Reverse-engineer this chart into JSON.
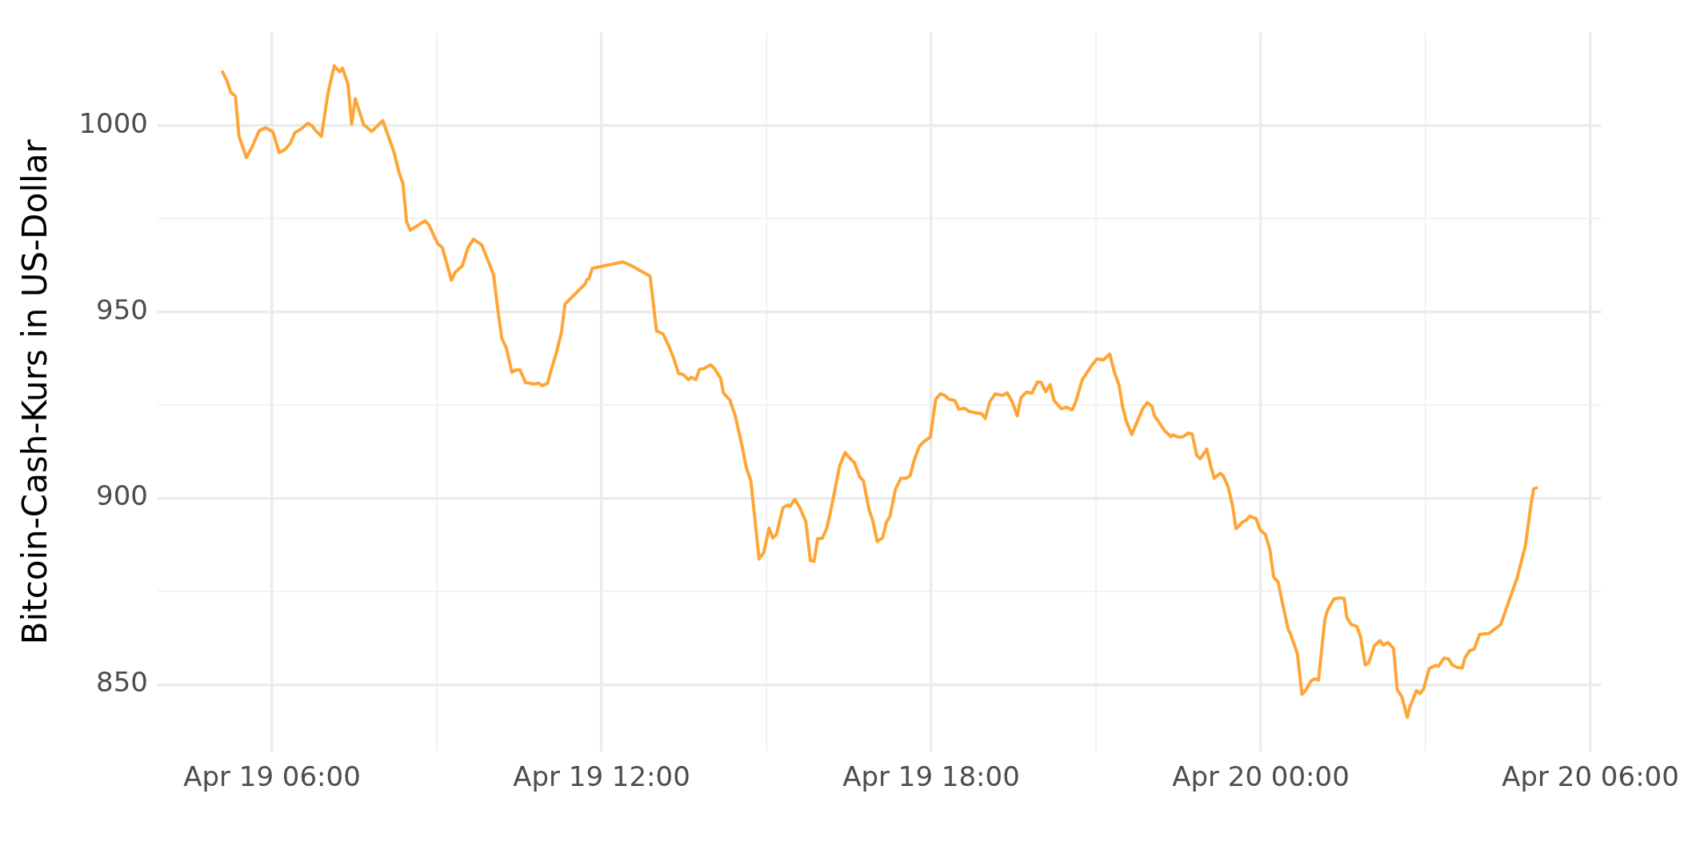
{
  "chart_data": {
    "type": "line",
    "ylabel": "Bitcoin-Cash-Kurs in US-Dollar",
    "x": [
      "--04-19T05:06",
      "--04-19T05:11",
      "--04-19T05:15",
      "--04-19T05:20",
      "--04-19T05:24",
      "--04-19T05:32",
      "--04-19T05:38",
      "--04-19T05:46",
      "--04-19T05:53",
      "--04-19T06:01",
      "--04-19T06:08",
      "--04-19T06:14",
      "--04-19T06:20",
      "--04-19T06:25",
      "--04-19T06:32",
      "--04-19T06:39",
      "--04-19T06:44",
      "--04-19T06:47",
      "--04-19T06:54",
      "--04-19T07:01",
      "--04-19T07:08",
      "--04-19T07:14",
      "--04-19T07:17",
      "--04-19T07:23",
      "--04-19T07:27",
      "--04-19T07:31",
      "--04-19T07:40",
      "--04-19T07:49",
      "--04-19T08:01",
      "--04-19T08:13",
      "--04-19T08:19",
      "--04-19T08:23",
      "--04-19T08:27",
      "--04-19T08:31",
      "--04-19T08:47",
      "--04-19T08:51",
      "--04-19T09:01",
      "--04-19T09:06",
      "--04-19T09:16",
      "--04-19T09:20",
      "--04-19T09:28",
      "--04-19T09:34",
      "--04-19T09:40",
      "--04-19T09:49",
      "--04-19T10:02",
      "--04-19T10:06",
      "--04-19T10:11",
      "--04-19T10:16",
      "--04-19T10:22",
      "--04-19T10:26",
      "--04-19T10:31",
      "--04-19T10:37",
      "--04-19T10:41",
      "--04-19T10:46",
      "--04-19T10:51",
      "--04-19T10:55",
      "--04-19T11:01",
      "--04-19T11:05",
      "--04-19T11:10",
      "--04-19T11:16",
      "--04-19T11:20",
      "--04-19T11:42",
      "--04-19T11:44",
      "--04-19T11:46",
      "--04-19T11:50",
      "--04-19T12:23",
      "--04-19T12:31",
      "--04-19T12:53",
      "--04-19T13:00",
      "--04-19T13:07",
      "--04-19T13:13",
      "--04-19T13:19",
      "--04-19T13:24",
      "--04-19T13:29",
      "--04-19T13:35",
      "--04-19T13:38",
      "--04-19T13:43",
      "--04-19T13:47",
      "--04-19T13:52",
      "--04-19T13:59",
      "--04-19T14:03",
      "--04-19T14:10",
      "--04-19T14:13",
      "--04-19T14:20",
      "--04-19T14:26",
      "--04-19T14:33",
      "--04-19T14:38",
      "--04-19T14:43",
      "--04-19T14:52",
      "--04-19T14:57",
      "--04-19T15:03",
      "--04-19T15:07",
      "--04-19T15:11",
      "--04-19T15:18",
      "--04-19T15:23",
      "--04-19T15:26",
      "--04-19T15:31",
      "--04-19T15:36",
      "--04-19T15:43",
      "--04-19T15:48",
      "--04-19T15:52",
      "--04-19T15:56",
      "--04-19T16:01",
      "--04-19T16:06",
      "--04-19T16:11",
      "--04-19T16:20",
      "--04-19T16:26",
      "--04-19T16:30",
      "--04-19T16:36",
      "--04-19T16:42",
      "--04-19T16:46",
      "--04-19T16:52",
      "--04-19T16:56",
      "--04-19T17:01",
      "--04-19T17:07",
      "--04-19T17:11",
      "--04-19T17:15",
      "--04-19T17:21",
      "--04-19T17:27",
      "--04-19T17:32",
      "--04-19T17:37",
      "--04-19T17:41",
      "--04-19T17:47",
      "--04-19T17:52",
      "--04-19T17:59",
      "--04-19T18:05",
      "--04-19T18:10",
      "--04-19T18:15",
      "--04-19T18:19",
      "--04-19T18:26",
      "--04-19T18:30",
      "--04-19T18:37",
      "--04-19T18:41",
      "--04-19T18:47",
      "--04-19T18:55",
      "--04-19T18:59",
      "--04-19T19:04",
      "--04-19T19:10",
      "--04-19T19:18",
      "--04-19T19:23",
      "--04-19T19:29",
      "--04-19T19:34",
      "--04-19T19:38",
      "--04-19T19:44",
      "--04-19T19:50",
      "--04-19T19:56",
      "--04-19T20:00",
      "--04-19T20:05",
      "--04-19T20:10",
      "--04-19T20:14",
      "--04-19T20:22",
      "--04-19T20:28",
      "--04-19T20:34",
      "--04-19T20:38",
      "--04-19T20:45",
      "--04-19T20:52",
      "--04-19T20:55",
      "--04-19T21:01",
      "--04-19T21:08",
      "--04-19T21:15",
      "--04-19T21:20",
      "--04-19T21:25",
      "--04-19T21:29",
      "--04-19T21:33",
      "--04-19T21:39",
      "--04-19T21:44",
      "--04-19T21:51",
      "--04-19T21:56",
      "--04-19T22:01",
      "--04-19T22:04",
      "--04-19T22:08",
      "--04-19T22:15",
      "--04-19T22:22",
      "--04-19T22:24",
      "--04-19T22:30",
      "--04-19T22:35",
      "--04-19T22:41",
      "--04-19T22:45",
      "--04-19T22:50",
      "--04-19T22:54",
      "--04-19T23:01",
      "--04-19T23:05",
      "--04-19T23:09",
      "--04-19T23:16",
      "--04-19T23:19",
      "--04-19T23:24",
      "--04-19T23:29",
      "--04-19T23:33",
      "--04-19T23:40",
      "--04-19T23:44",
      "--04-19T23:48",
      "--04-19T23:55",
      "--04-19T23:59",
      "--04-20T00:05",
      "--04-20T00:10",
      "--04-20T00:14",
      "--04-20T00:19",
      "--04-20T00:23",
      "--04-20T00:30",
      "--04-20T00:32",
      "--04-20T00:40",
      "--04-20T00:45",
      "--04-20T00:49",
      "--04-20T00:55",
      "--04-20T00:59",
      "--04-20T01:03",
      "--04-20T01:10",
      "--04-20T01:13",
      "--04-20T01:20",
      "--04-20T01:25",
      "--04-20T01:31",
      "--04-20T01:34",
      "--04-20T01:39",
      "--04-20T01:45",
      "--04-20T01:49",
      "--04-20T01:54",
      "--04-20T01:58",
      "--04-20T02:04",
      "--04-20T02:10",
      "--04-20T02:14",
      "--04-20T02:19",
      "--04-20T02:25",
      "--04-20T02:29",
      "--04-20T02:34",
      "--04-20T02:40",
      "--04-20T02:43",
      "--04-20T02:50",
      "--04-20T02:54",
      "--04-20T02:58",
      "--04-20T03:04",
      "--04-20T03:11",
      "--04-20T03:14",
      "--04-20T03:20",
      "--04-20T03:25",
      "--04-20T03:29",
      "--04-20T03:35",
      "--04-20T03:40",
      "--04-20T03:43",
      "--04-20T03:48",
      "--04-20T03:53",
      "--04-20T03:59",
      "--04-20T04:09",
      "--04-20T04:22",
      "--04-20T04:40",
      "--04-20T04:49",
      "--04-20T04:55",
      "--04-20T04:58",
      "--04-20T05:01"
    ],
    "series": [
      {
        "color": "#ffa536",
        "values": [
          1014.4,
          1011.9,
          1008.9,
          1007.9,
          997.1,
          991.4,
          994.1,
          998.6,
          999.4,
          998.3,
          992.7,
          993.5,
          995.2,
          998.1,
          999.1,
          1000.6,
          999.9,
          998.8,
          997.1,
          1008.5,
          1016.0,
          1014.4,
          1015.4,
          1011.1,
          1000.4,
          1007.2,
          1000.3,
          998.4,
          1001.3,
          993.1,
          987.2,
          984.5,
          974.2,
          971.9,
          974.4,
          973.5,
          968.3,
          967.3,
          958.5,
          960.6,
          962.4,
          967.2,
          969.5,
          968.0,
          960.0,
          951.8,
          942.9,
          940.3,
          933.8,
          934.4,
          934.4,
          931.0,
          930.9,
          930.6,
          930.9,
          930.2,
          930.8,
          934.5,
          938.5,
          944.3,
          952.1,
          957.5,
          958.7,
          958.8,
          961.7,
          963.4,
          962.6,
          959.6,
          944.9,
          944.1,
          941.1,
          937.4,
          933.5,
          933.2,
          931.8,
          932.5,
          931.8,
          934.6,
          934.8,
          935.8,
          934.9,
          932.2,
          928.3,
          926.4,
          922.1,
          914.5,
          908.3,
          904.7,
          883.7,
          885.4,
          892.0,
          889.3,
          890.3,
          897.4,
          898.2,
          897.9,
          899.7,
          897.7,
          893.8,
          883.3,
          883.1,
          889.2,
          889.2,
          892.0,
          897.5,
          908.7,
          912.3,
          911.0,
          909.6,
          905.7,
          904.7,
          897.1,
          894.2,
          888.4,
          889.4,
          893.5,
          895.2,
          902.5,
          905.4,
          905.3,
          906.0,
          909.9,
          913.9,
          915.2,
          916.4,
          926.6,
          928.0,
          927.6,
          926.6,
          926.2,
          923.9,
          924.1,
          923.3,
          923.0,
          922.7,
          921.4,
          925.9,
          928.0,
          927.6,
          928.3,
          925.6,
          922.1,
          927.0,
          928.5,
          928.2,
          931.2,
          931.1,
          928.6,
          930.5,
          926.3,
          924.0,
          924.4,
          923.7,
          926.0,
          931.8,
          934.4,
          935.5,
          937.4,
          937.1,
          938.7,
          933.9,
          930.5,
          924.6,
          920.8,
          917.1,
          920.0,
          924.0,
          925.7,
          924.7,
          922.0,
          920.7,
          918.1,
          916.5,
          917.0,
          916.4,
          916.5,
          917.5,
          917.2,
          911.5,
          910.6,
          913.2,
          908.9,
          905.4,
          906.7,
          906.0,
          903.3,
          898.2,
          891.8,
          893.6,
          894.1,
          895.2,
          894.5,
          891.6,
          890.3,
          886.1,
          878.9,
          877.5,
          872.6,
          864.7,
          863.9,
          858.2,
          847.4,
          848.5,
          851.0,
          851.6,
          851.2,
          867.6,
          870.0,
          873.0,
          873.2,
          873.2,
          868.0,
          866.1,
          865.6,
          862.8,
          855.3,
          855.9,
          860.4,
          861.8,
          860.6,
          861.3,
          859.7,
          848.6,
          846.8,
          841.2,
          844.1,
          848.4,
          847.6,
          849.0,
          854.3,
          855.2,
          854.9,
          857.1,
          856.9,
          855.3,
          854.6,
          854.5,
          857.2,
          859.1,
          859.5,
          863.5,
          863.7,
          866.1,
          878.7,
          887.3,
          898.2,
          902.5,
          902.8
        ]
      }
    ],
    "xlim": [
      "--04-19T03:55",
      "--04-20T06:12"
    ],
    "xticks": [
      {
        "value": "--04-19T06:00",
        "label": "Apr 19 06:00"
      },
      {
        "value": "--04-19T09:00",
        "label": null
      },
      {
        "value": "--04-19T12:00",
        "label": "Apr 19 12:00"
      },
      {
        "value": "--04-19T15:00",
        "label": null
      },
      {
        "value": "--04-19T18:00",
        "label": "Apr 19 18:00"
      },
      {
        "value": "--04-19T21:00",
        "label": null
      },
      {
        "value": "--04-20T00:00",
        "label": "Apr 20 00:00"
      },
      {
        "value": "--04-20T03:00",
        "label": null
      },
      {
        "value": "--04-20T06:00",
        "label": "Apr 20 06:00"
      }
    ],
    "ylim": [
      832,
      1025
    ],
    "yticks": [
      850,
      {
        "value": 875,
        "label": null
      },
      900,
      {
        "value": 925,
        "label": null
      },
      950,
      {
        "value": 975,
        "label": null
      },
      1000
    ],
    "grid": true,
    "legend": false,
    "line_style": "solid",
    "marker": "none"
  }
}
